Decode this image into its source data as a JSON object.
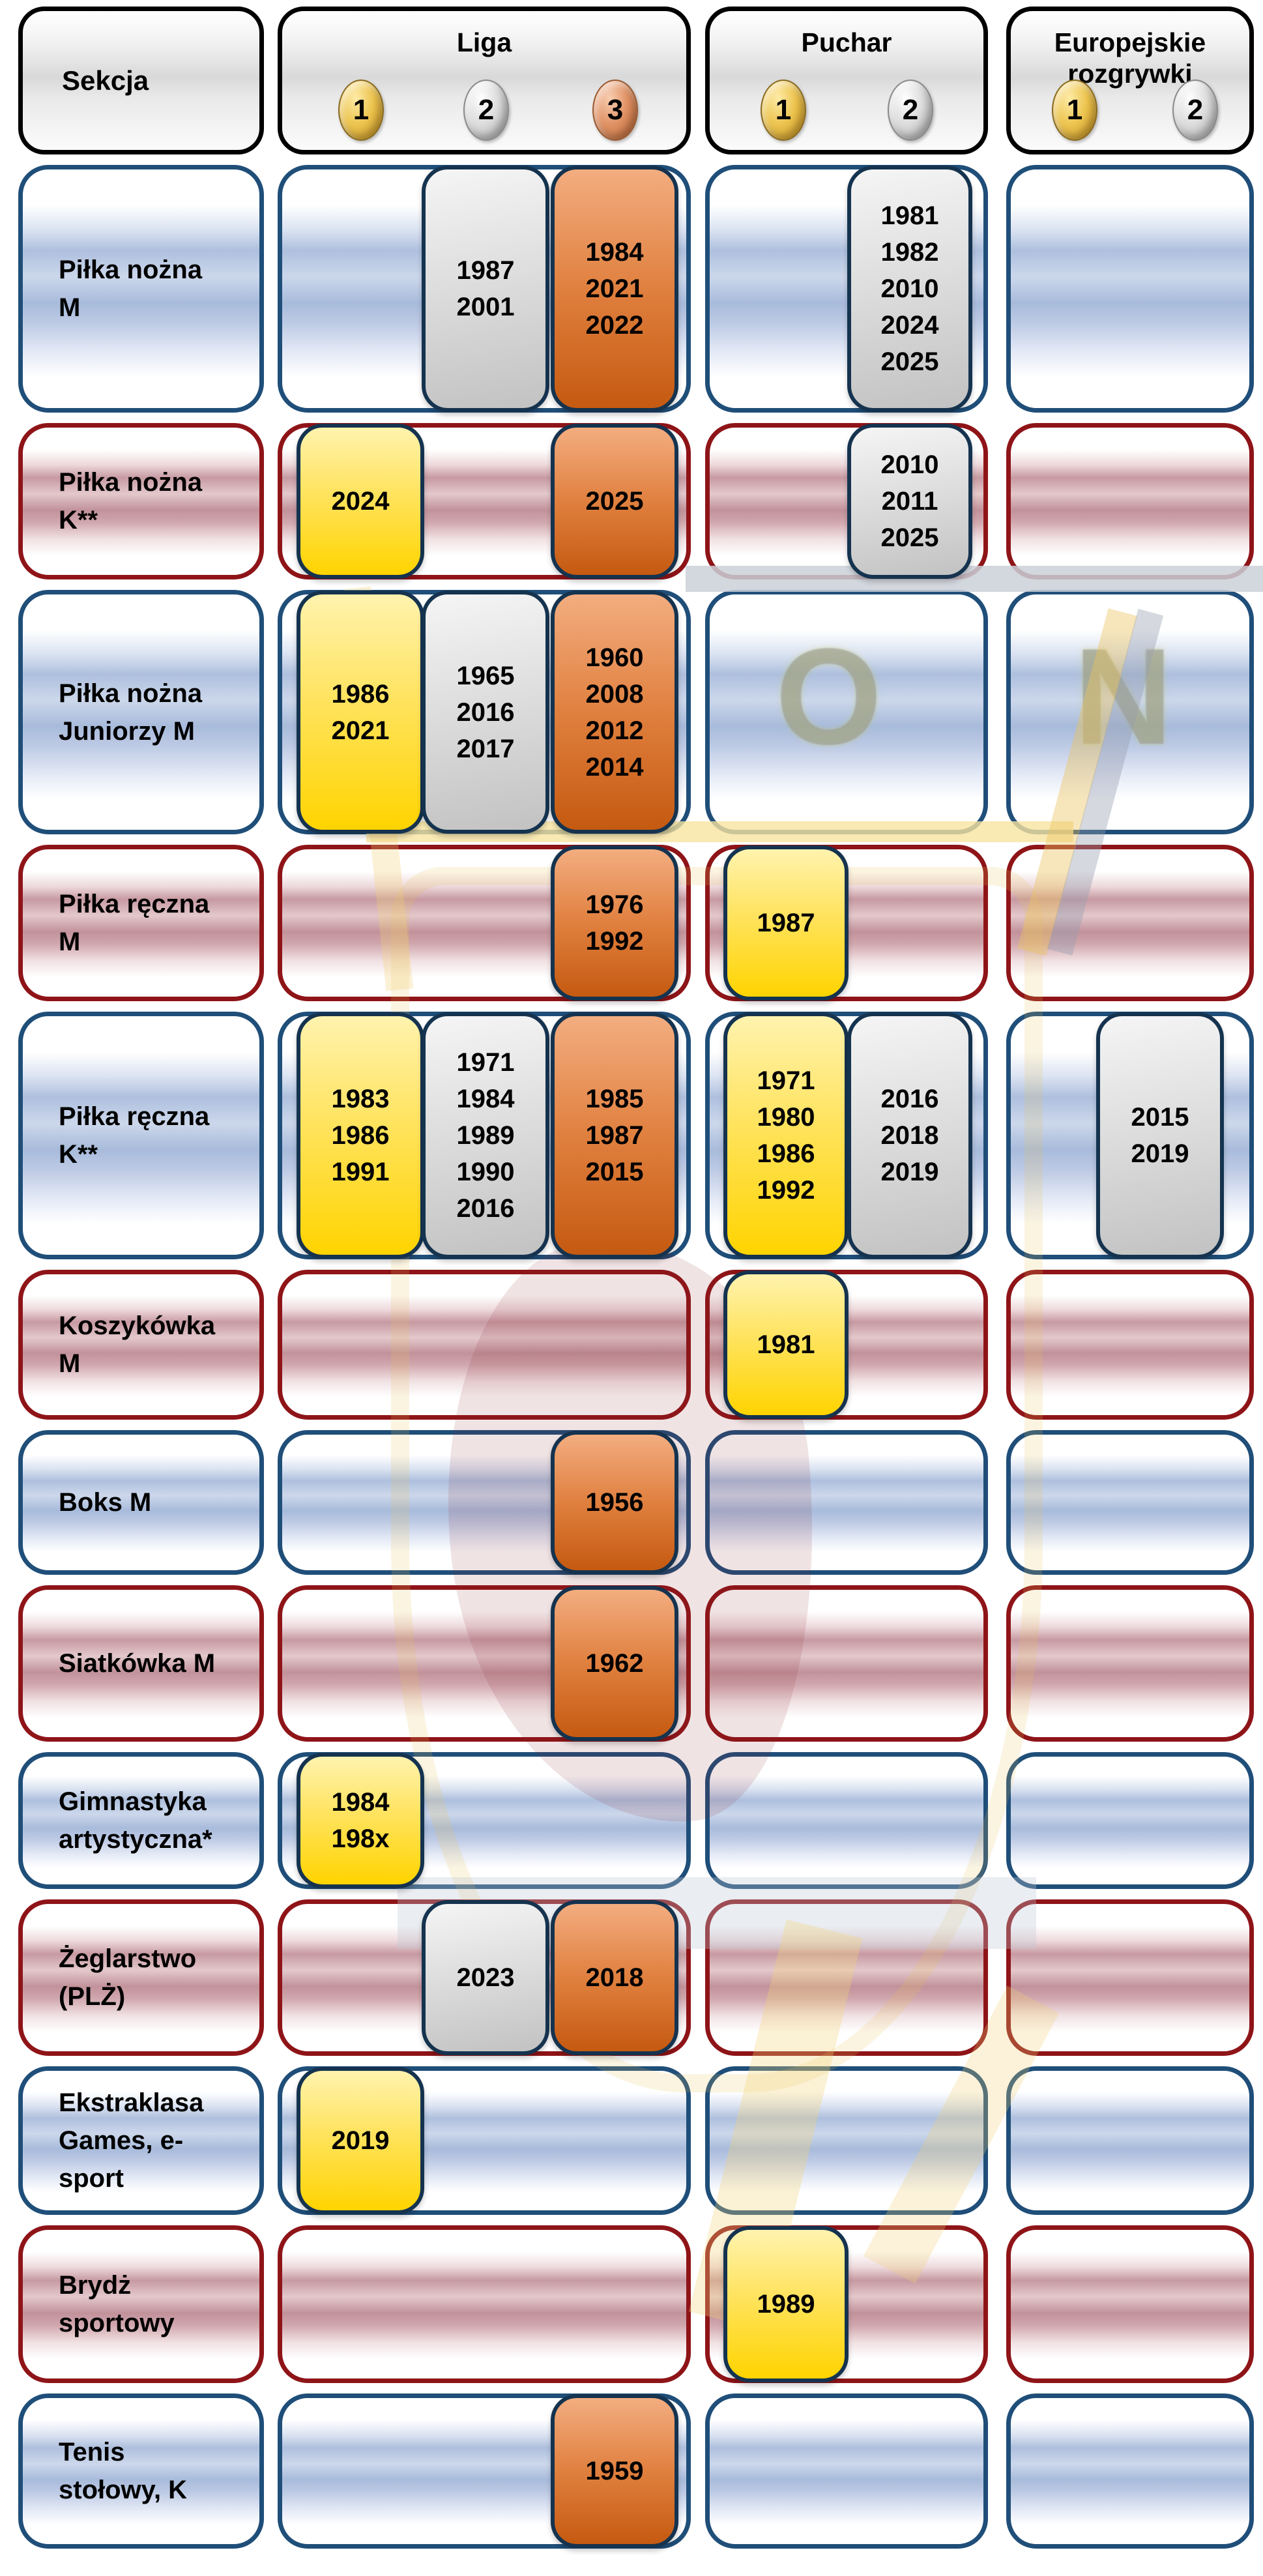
{
  "chart_data": {
    "type": "table",
    "corner_label": "Sekcja",
    "columns": [
      {
        "id": "liga",
        "label": "Liga",
        "medals": [
          {
            "rank": "1",
            "metal": "gold"
          },
          {
            "rank": "2",
            "metal": "silver"
          },
          {
            "rank": "3",
            "metal": "bronze"
          }
        ]
      },
      {
        "id": "puchar",
        "label": "Puchar",
        "medals": [
          {
            "rank": "1",
            "metal": "gold"
          },
          {
            "rank": "2",
            "metal": "silver"
          }
        ]
      },
      {
        "id": "europa",
        "label": "Europejskie rozgrywki",
        "medals": [
          {
            "rank": "1",
            "metal": "gold"
          },
          {
            "rank": "2",
            "metal": "silver"
          }
        ]
      }
    ],
    "rows": [
      {
        "section": "Piłka nożna M",
        "theme": "blue",
        "liga": {
          "silver": [
            "1987",
            "2001"
          ],
          "bronze": [
            "1984",
            "2021",
            "2022"
          ]
        },
        "puchar": {
          "silver": [
            "1981",
            "1982",
            "2010",
            "2024",
            "2025"
          ]
        },
        "europa": {}
      },
      {
        "section": "Piłka nożna K**",
        "theme": "red",
        "liga": {
          "gold": [
            "2024"
          ],
          "bronze": [
            "2025"
          ]
        },
        "puchar": {
          "silver": [
            "2010",
            "2011",
            "2025"
          ]
        },
        "europa": {}
      },
      {
        "section": "Piłka nożna Juniorzy M",
        "theme": "blue",
        "liga": {
          "gold": [
            "1986",
            "2021"
          ],
          "silver": [
            "1965",
            "2016",
            "2017"
          ],
          "bronze": [
            "1960",
            "2008",
            "2012",
            "2014"
          ]
        },
        "puchar": {},
        "europa": {}
      },
      {
        "section": "Piłka ręczna M",
        "theme": "red",
        "liga": {
          "bronze": [
            "1976",
            "1992"
          ]
        },
        "puchar": {
          "gold": [
            "1987"
          ]
        },
        "europa": {}
      },
      {
        "section": "Piłka ręczna K**",
        "theme": "blue",
        "liga": {
          "gold": [
            "1983",
            "1986",
            "1991"
          ],
          "silver": [
            "1971",
            "1984",
            "1989",
            "1990",
            "2016"
          ],
          "bronze": [
            "1985",
            "1987",
            "2015"
          ]
        },
        "puchar": {
          "gold": [
            "1971",
            "1980",
            "1986",
            "1992"
          ],
          "silver": [
            "2016",
            "2018",
            "2019"
          ]
        },
        "europa": {
          "silver": [
            "2015",
            "2019"
          ]
        }
      },
      {
        "section": "Koszykówka M",
        "theme": "red",
        "liga": {},
        "puchar": {
          "gold": [
            "1981"
          ]
        },
        "europa": {}
      },
      {
        "section": "Boks M",
        "theme": "blue",
        "liga": {
          "bronze": [
            "1956"
          ]
        },
        "puchar": {},
        "europa": {}
      },
      {
        "section": "Siatkówka M",
        "theme": "red",
        "liga": {
          "bronze": [
            "1962"
          ]
        },
        "puchar": {},
        "europa": {}
      },
      {
        "section": "Gimnastyka artystyczna*",
        "theme": "blue",
        "liga": {
          "gold": [
            "1984",
            "198x"
          ]
        },
        "puchar": {},
        "europa": {}
      },
      {
        "section": "Żeglarstwo (PLŻ)",
        "theme": "red",
        "liga": {
          "silver": [
            "2023"
          ],
          "bronze": [
            "2018"
          ]
        },
        "puchar": {},
        "europa": {}
      },
      {
        "section": "Ekstraklasa Games, e-sport",
        "theme": "blue",
        "liga": {
          "gold": [
            "2019"
          ]
        },
        "puchar": {},
        "europa": {}
      },
      {
        "section": "Brydż sportowy",
        "theme": "red",
        "liga": {},
        "puchar": {
          "gold": [
            "1989"
          ]
        },
        "europa": {}
      },
      {
        "section": "Tenis stołowy, K",
        "theme": "blue",
        "liga": {
          "bronze": [
            "1959"
          ]
        },
        "puchar": {},
        "europa": {}
      }
    ]
  },
  "legend_colors": {
    "gold": "#FFD400",
    "silver": "#C2C2C2",
    "bronze": "#C55A11",
    "blue_row_border": "#1F4E79",
    "red_row_border": "#8E1418",
    "pill_border": "#15334F"
  },
  "watermark": {
    "letters": "O N"
  }
}
